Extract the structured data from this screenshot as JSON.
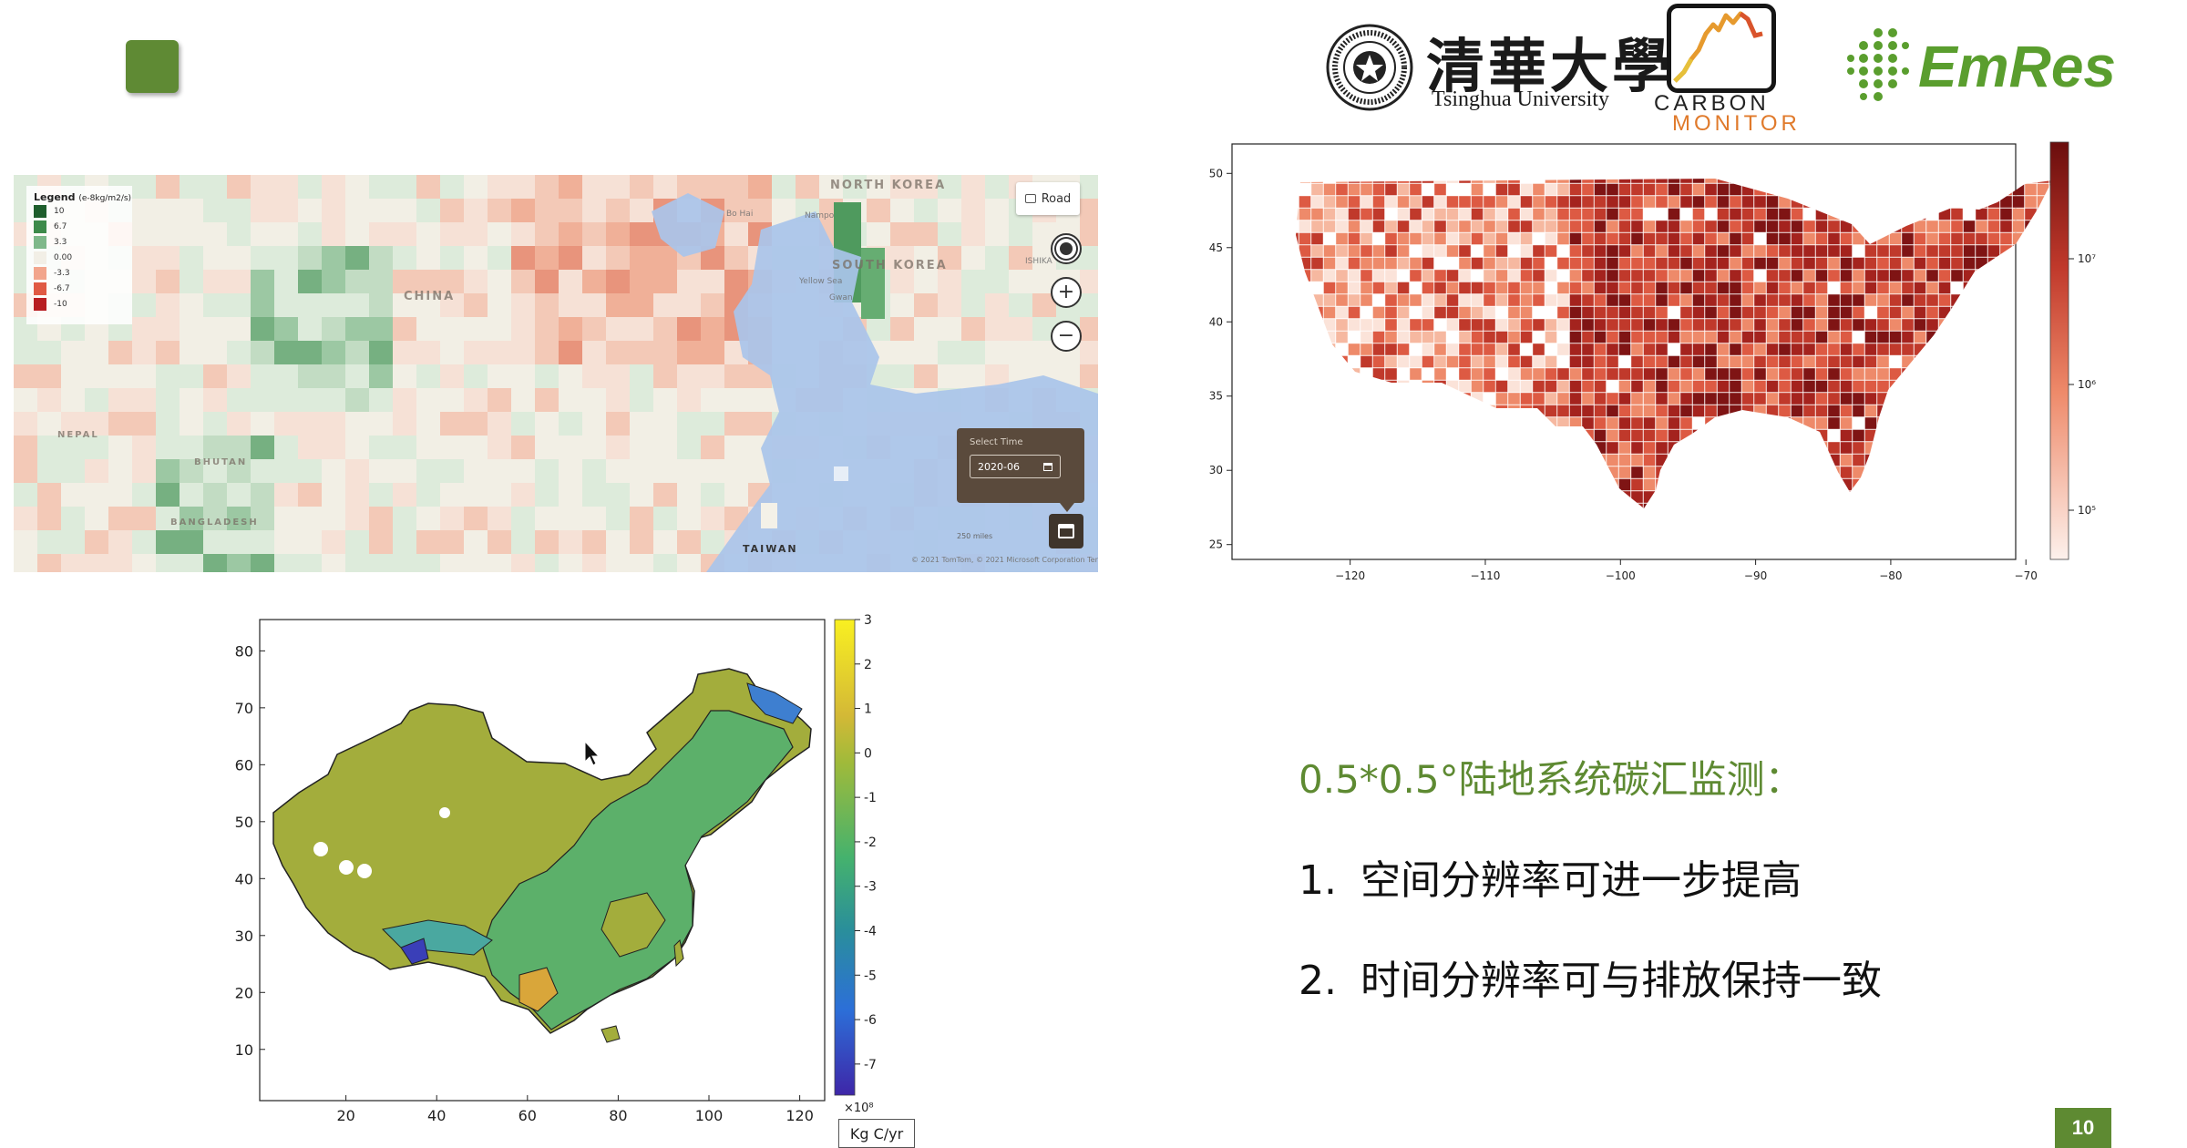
{
  "logos": {
    "tsinghua_cn": "清華大學",
    "tsinghua_en": "Tsinghua University",
    "carbon_top": "CARBON",
    "carbon_bottom": "MONITOR",
    "emres": "EmRes"
  },
  "map_panel": {
    "legend_title": "Legend",
    "legend_unit": "(e-8kg/m2/s)",
    "legend_items": [
      {
        "label": "10",
        "color": "#1e5e2c"
      },
      {
        "label": "6.7",
        "color": "#3d8a4a"
      },
      {
        "label": "3.3",
        "color": "#7fb88a"
      },
      {
        "label": "0.00",
        "color": "#f2efe6"
      },
      {
        "label": "-3.3",
        "color": "#f2a58c"
      },
      {
        "label": "-6.7",
        "color": "#e05a44"
      },
      {
        "label": "-10",
        "color": "#b81e22"
      }
    ],
    "road_label": "Road",
    "time_label": "Select Time",
    "time_value": "2020-06",
    "place_labels": {
      "north_korea": "NORTH KOREA",
      "south_korea": "SOUTH KOREA",
      "china": "CHINA",
      "nepal": "NEPAL",
      "bhutan": "BHUTAN",
      "bangladesh": "BANGLADESH",
      "taiwan": "TAIWAN",
      "bo_hai": "Bo Hai",
      "nampo": "Nampo",
      "yellow_sea": "Yellow Sea",
      "ishika": "ISHIKA",
      "gwan": "Gwan"
    },
    "scale": "250 miles",
    "attribution": "© 2021 TomTom, © 2021 Microsoft Corporation  Terms"
  },
  "us_chart": {
    "y_ticks": [
      "50",
      "45",
      "40",
      "35",
      "30",
      "25"
    ],
    "x_ticks": [
      "−120",
      "−110",
      "−100",
      "−90",
      "−80",
      "−70"
    ],
    "colorbar_ticks": [
      "10⁷",
      "10⁶",
      "10⁵"
    ]
  },
  "chart_data": {
    "type": "heatmap",
    "xlabel": "",
    "ylabel": "",
    "x_ticks": [
      20,
      40,
      60,
      80,
      100,
      120
    ],
    "y_ticks": [
      10,
      20,
      30,
      40,
      50,
      60,
      70,
      80
    ],
    "colorbar_ticks": [
      3,
      2,
      1,
      0,
      -1,
      -2,
      -3,
      -4,
      -5,
      -6,
      -7
    ],
    "colorbar_exponent": "×10⁸",
    "unit": "Kg C/yr",
    "colormap": [
      "#f9f021",
      "#d4b936",
      "#a0ba3a",
      "#45b26d",
      "#2a8f9a",
      "#2c6fd8",
      "#3e26a8"
    ]
  },
  "text": {
    "headline": "0.5*0.5°陆地系统碳汇监测：",
    "bullets": [
      {
        "num": "1.",
        "text": "空间分辨率可进一步提高"
      },
      {
        "num": "2.",
        "text": "时间分辨率可与排放保持一致"
      }
    ]
  },
  "page_number": "10"
}
